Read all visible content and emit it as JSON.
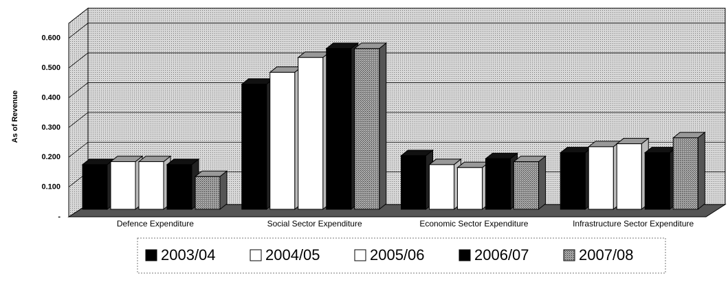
{
  "chart_data": {
    "type": "bar3d",
    "y_label": "As of Revenue",
    "categories": [
      "Defence Expenditure",
      "Social Sector Expenditure",
      "Economic Sector Expenditure",
      "Infrastructure Sector Expenditure"
    ],
    "series": [
      {
        "name": "2003/04",
        "color": "#000000",
        "values": [
          0.15,
          0.42,
          0.18,
          0.19
        ]
      },
      {
        "name": "2004/05",
        "color": "#ffffff",
        "values": [
          0.16,
          0.46,
          0.15,
          0.21
        ]
      },
      {
        "name": "2005/06",
        "color": "#ffffff",
        "values": [
          0.16,
          0.51,
          0.14,
          0.22
        ]
      },
      {
        "name": "2006/07",
        "color": "#000000",
        "values": [
          0.15,
          0.54,
          0.17,
          0.19
        ]
      },
      {
        "name": "2007/08",
        "color": "#8c8c8c",
        "values": [
          0.11,
          0.54,
          0.16,
          0.24
        ]
      }
    ],
    "ylim": [
      0,
      0.65
    ],
    "yticks": [
      {
        "value": 0,
        "label": "-"
      },
      {
        "value": 0.1,
        "label": "0.100"
      },
      {
        "value": 0.2,
        "label": "0.200"
      },
      {
        "value": 0.3,
        "label": "0.300"
      },
      {
        "value": 0.4,
        "label": "0.400"
      },
      {
        "value": 0.5,
        "label": "0.500"
      },
      {
        "value": 0.6,
        "label": "0.600"
      }
    ],
    "grid": true,
    "legend": "bottom"
  }
}
